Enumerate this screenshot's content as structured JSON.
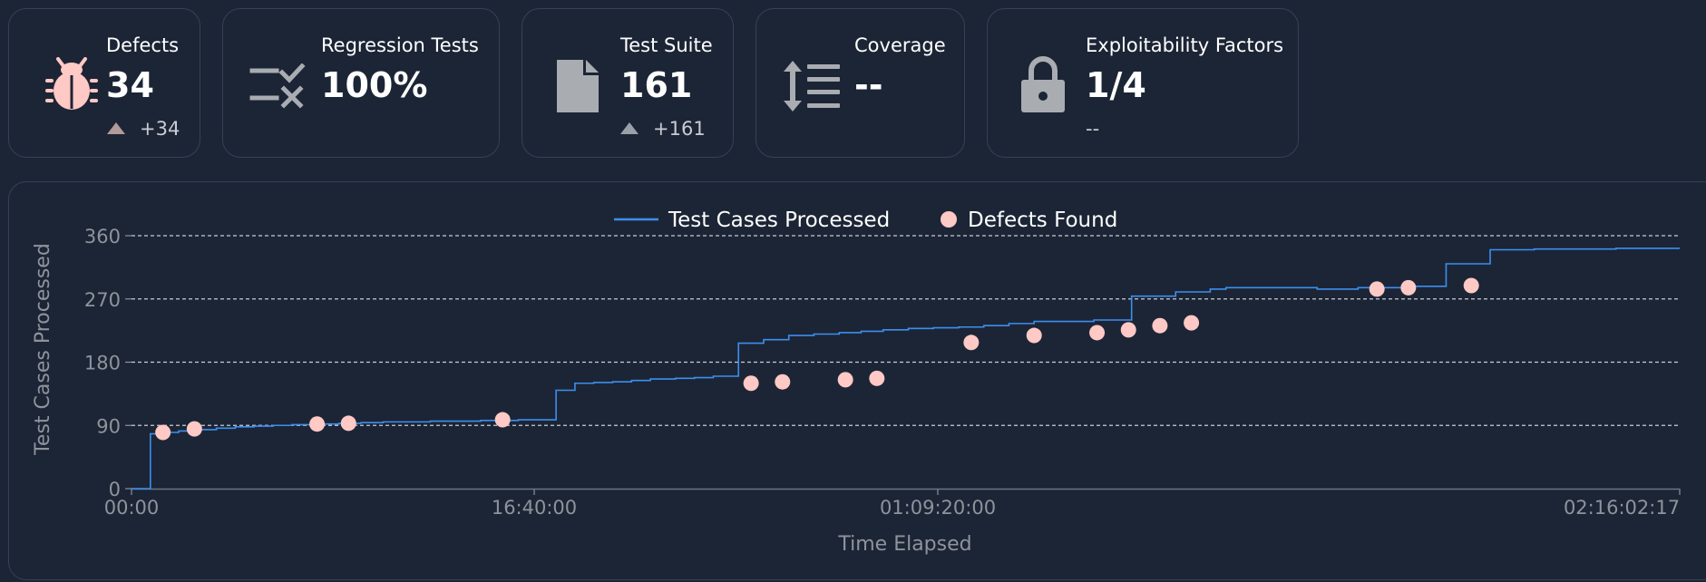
{
  "cards": [
    {
      "label": "Defects",
      "value": "34",
      "delta": "+34",
      "icon": "bug-icon"
    },
    {
      "label": "Regression Tests",
      "value": "100%",
      "icon": "regression-check-icon"
    },
    {
      "label": "Test Suite",
      "value": "161",
      "delta": "+161",
      "icon": "file-icon"
    },
    {
      "label": "Coverage",
      "value": "--",
      "icon": "line-spacing-icon"
    },
    {
      "label": "Exploitability Factors",
      "value": "1/4",
      "delta": "--",
      "icon": "lock-icon"
    }
  ],
  "colors": {
    "line": "#3b8ff0",
    "marker": "#ffc9c5",
    "accent_icon": "#ffc9c5",
    "gray_icon": "#a9acb1"
  },
  "chart_data": {
    "type": "line",
    "xlabel": "Time Elapsed",
    "ylabel": "Test Cases Processed",
    "ylim": [
      0,
      360
    ],
    "yticks": [
      0,
      90,
      180,
      270,
      360
    ],
    "xticks": [
      "00:00",
      "16:40:00",
      "01:09:20:00",
      "02:16:02:17"
    ],
    "grid": true,
    "legend_position": "top-center",
    "series": [
      {
        "name": "Test Cases Processed",
        "kind": "step",
        "x_seconds": [
          0,
          3000,
          5000,
          7500,
          10500,
          13500,
          16500,
          19500,
          22500,
          25500,
          29000,
          33000,
          36500,
          40000,
          43500,
          47500,
          52000,
          55500,
          58500,
          61500,
          64500,
          67500,
          70500,
          73500,
          76500,
          79500,
          82500,
          86500,
          89500,
          92500,
          96500,
          100500,
          104500,
          108500,
          112500,
          116000,
          119500,
          123500,
          127500,
          131500,
          135500,
          139500,
          143500,
          146500,
          150500,
          153000,
          159000,
          166000,
          171500,
          174000,
          188500,
          195000,
          202000,
          209000,
          216000,
          223000,
          231000,
          236000,
          241000,
          246000
        ],
        "y": [
          0,
          78,
          80,
          82,
          84,
          86,
          88,
          89,
          90,
          91,
          92,
          93,
          94,
          95,
          95,
          96,
          96,
          97,
          97,
          98,
          98,
          140,
          150,
          151,
          152,
          154,
          156,
          157,
          158,
          160,
          207,
          212,
          218,
          220,
          222,
          224,
          226,
          228,
          229,
          230,
          232,
          235,
          238,
          238,
          238,
          240,
          274,
          280,
          284,
          286,
          284,
          286,
          288,
          320,
          340,
          341,
          341,
          342,
          342,
          342
        ]
      },
      {
        "name": "Defects Found",
        "kind": "scatter",
        "x_seconds": [
          5000,
          10000,
          29500,
          34500,
          59000,
          98500,
          103500,
          113500,
          118500,
          133500,
          143500,
          153500,
          158500,
          163500,
          168500,
          198000,
          203000,
          213000
        ],
        "y": [
          80,
          85,
          92,
          93,
          98,
          150,
          152,
          155,
          157,
          208,
          218,
          222,
          226,
          232,
          236,
          284,
          286,
          289
        ]
      }
    ],
    "x_max_seconds": 246137
  }
}
